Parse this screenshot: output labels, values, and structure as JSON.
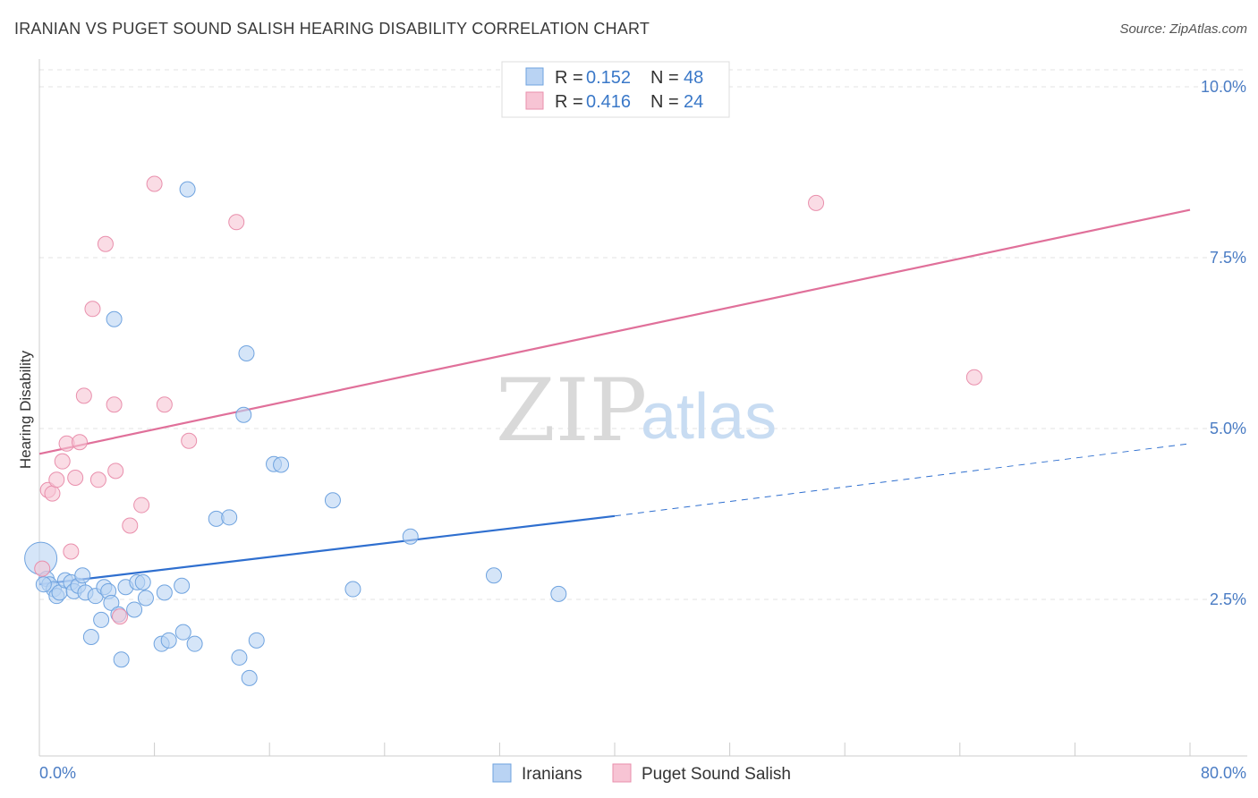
{
  "title": "IRANIAN VS PUGET SOUND SALISH HEARING DISABILITY CORRELATION CHART",
  "source": "Source: ZipAtlas.com",
  "watermark": {
    "zip": "ZIP",
    "atlas": "atlas"
  },
  "colors": {
    "blue": "#6fa3df",
    "blue_fill": "#b9d3f3",
    "blue_line": "#2f6fcf",
    "pink": "#e98fac",
    "pink_fill": "#f7c4d4",
    "pink_line": "#e0709a"
  },
  "legend": {
    "rows": [
      {
        "r_label": "R =",
        "r_value": "0.152",
        "n_label": "N =",
        "n_value": "48"
      },
      {
        "r_label": "R =",
        "r_value": "0.416",
        "n_label": "N =",
        "n_value": "24"
      }
    ]
  },
  "bottom_legend": [
    "Iranians",
    "Puget Sound Salish"
  ],
  "chart_data": {
    "type": "scatter",
    "xlabel": "",
    "ylabel": "Hearing Disability",
    "xlim": [
      0,
      80
    ],
    "ylim": [
      0.5,
      10.5
    ],
    "x_tick_labels": [
      "0.0%",
      "80.0%"
    ],
    "y_ticks": [
      2.5,
      5.0,
      7.5,
      10.0
    ],
    "y_tick_labels": [
      "2.5%",
      "5.0%",
      "7.5%",
      "10.0%"
    ],
    "grid": true,
    "series": [
      {
        "name": "Iranians",
        "points": [
          [
            0.1,
            3.1
          ],
          [
            0.5,
            2.8
          ],
          [
            0.7,
            2.72
          ],
          [
            1.0,
            2.65
          ],
          [
            1.2,
            2.55
          ],
          [
            1.4,
            2.6
          ],
          [
            1.8,
            2.78
          ],
          [
            2.2,
            2.75
          ],
          [
            2.4,
            2.62
          ],
          [
            2.7,
            2.7
          ],
          [
            3.0,
            2.85
          ],
          [
            3.2,
            2.6
          ],
          [
            3.6,
            1.95
          ],
          [
            3.9,
            2.55
          ],
          [
            4.3,
            2.2
          ],
          [
            4.5,
            2.68
          ],
          [
            4.8,
            2.62
          ],
          [
            5.0,
            2.45
          ],
          [
            5.2,
            6.6
          ],
          [
            5.5,
            2.28
          ],
          [
            5.7,
            1.62
          ],
          [
            6.0,
            2.68
          ],
          [
            6.6,
            2.35
          ],
          [
            6.8,
            2.75
          ],
          [
            7.2,
            2.75
          ],
          [
            7.4,
            2.52
          ],
          [
            8.5,
            1.85
          ],
          [
            8.7,
            2.6
          ],
          [
            9.0,
            1.9
          ],
          [
            9.9,
            2.7
          ],
          [
            10.0,
            2.02
          ],
          [
            10.3,
            8.5
          ],
          [
            10.8,
            1.85
          ],
          [
            12.3,
            3.68
          ],
          [
            13.2,
            3.7
          ],
          [
            13.9,
            1.65
          ],
          [
            14.2,
            5.2
          ],
          [
            14.4,
            6.1
          ],
          [
            14.6,
            1.35
          ],
          [
            15.1,
            1.9
          ],
          [
            16.3,
            4.48
          ],
          [
            16.8,
            4.47
          ],
          [
            20.4,
            3.95
          ],
          [
            21.8,
            2.65
          ],
          [
            25.8,
            3.42
          ],
          [
            31.6,
            2.85
          ],
          [
            36.1,
            2.58
          ],
          [
            0.3,
            2.72
          ]
        ]
      },
      {
        "name": "Puget Sound Salish",
        "points": [
          [
            0.2,
            2.95
          ],
          [
            0.6,
            4.1
          ],
          [
            0.9,
            4.05
          ],
          [
            1.2,
            4.25
          ],
          [
            1.6,
            4.52
          ],
          [
            1.9,
            4.78
          ],
          [
            2.2,
            3.2
          ],
          [
            2.5,
            4.28
          ],
          [
            2.8,
            4.8
          ],
          [
            3.1,
            5.48
          ],
          [
            3.7,
            6.75
          ],
          [
            4.1,
            4.25
          ],
          [
            4.6,
            7.7
          ],
          [
            5.2,
            5.35
          ],
          [
            5.3,
            4.38
          ],
          [
            5.6,
            2.25
          ],
          [
            6.3,
            3.58
          ],
          [
            7.1,
            3.88
          ],
          [
            8.0,
            8.58
          ],
          [
            8.7,
            5.35
          ],
          [
            10.4,
            4.82
          ],
          [
            13.7,
            8.02
          ],
          [
            54.0,
            8.3
          ],
          [
            65.0,
            5.75
          ]
        ]
      }
    ],
    "trendlines": [
      {
        "series": "Iranians",
        "solid_x": [
          0,
          40
        ],
        "dashed_x": [
          40,
          80
        ],
        "y_at": {
          "0": 2.72,
          "40": 3.72,
          "80": 4.78
        }
      },
      {
        "series": "Puget Sound Salish",
        "solid_x": [
          0,
          80
        ],
        "y_at": {
          "0": 4.63,
          "80": 8.2
        }
      }
    ]
  }
}
